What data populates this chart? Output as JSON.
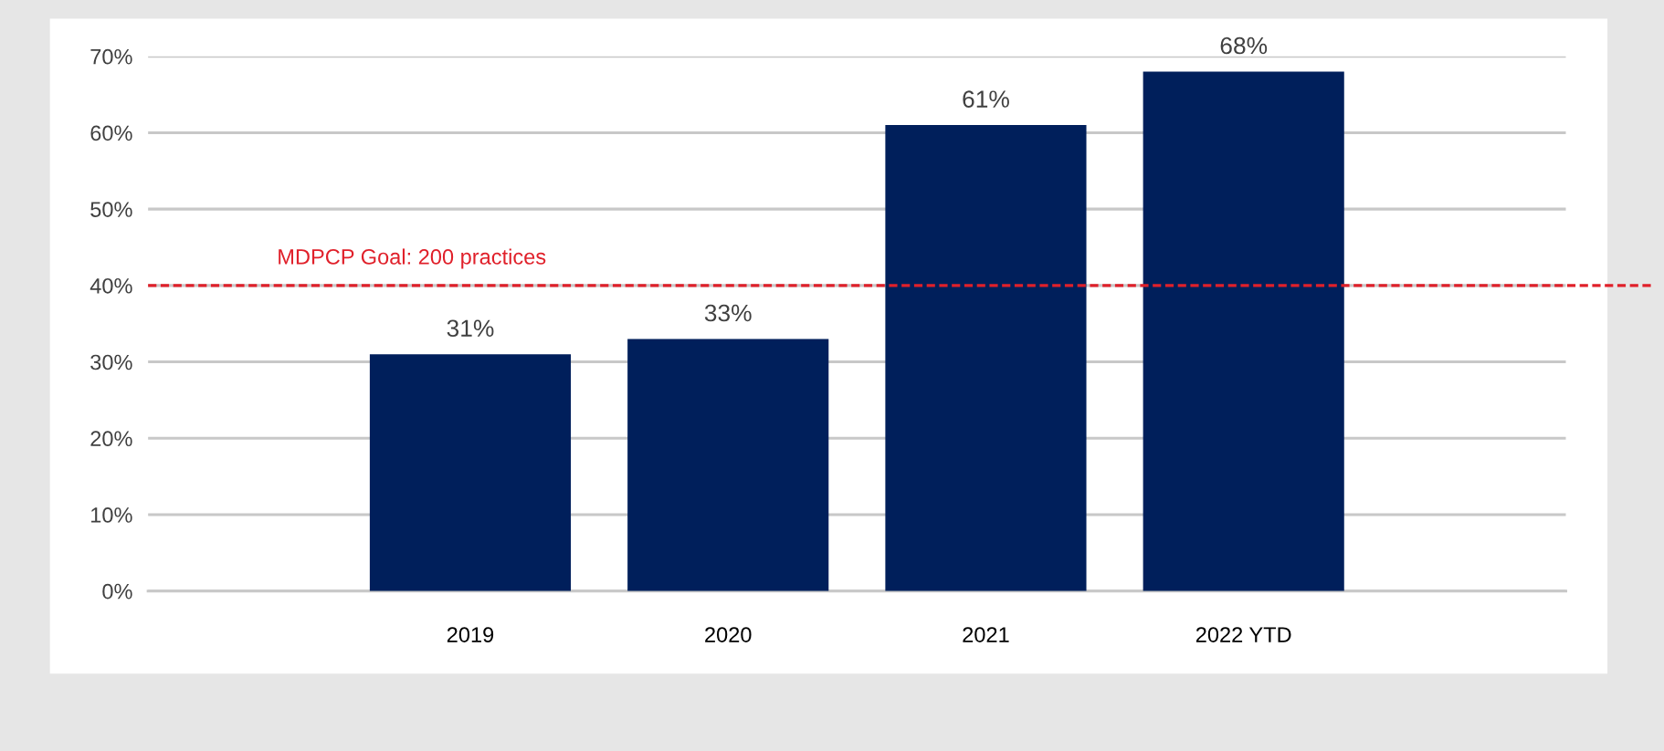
{
  "chart_data": {
    "type": "bar",
    "categories": [
      "2019",
      "2020",
      "2021",
      "2022 YTD"
    ],
    "values": [
      31,
      33,
      61,
      68
    ],
    "color": "#001f5b",
    "ylim": [
      0,
      70
    ],
    "yticks": [
      {
        "value": 0,
        "label": "0%"
      },
      {
        "value": 10,
        "label": "10%"
      },
      {
        "value": 20,
        "label": "20%"
      },
      {
        "value": 30,
        "label": "30%"
      },
      {
        "value": 40,
        "label": "40%"
      },
      {
        "value": 50,
        "label": "50%"
      },
      {
        "value": 60,
        "label": "60%"
      },
      {
        "value": 70,
        "label": "70%"
      }
    ],
    "value_labels": [
      "31%",
      "33%",
      "61%",
      "68%"
    ],
    "ref_lines": [
      {
        "axis": "y",
        "value": 40,
        "color": "#e0202a",
        "line_style": "dashed"
      }
    ],
    "annotations": [
      "MDPCP Goal: 200 practices"
    ],
    "grid": "y"
  }
}
